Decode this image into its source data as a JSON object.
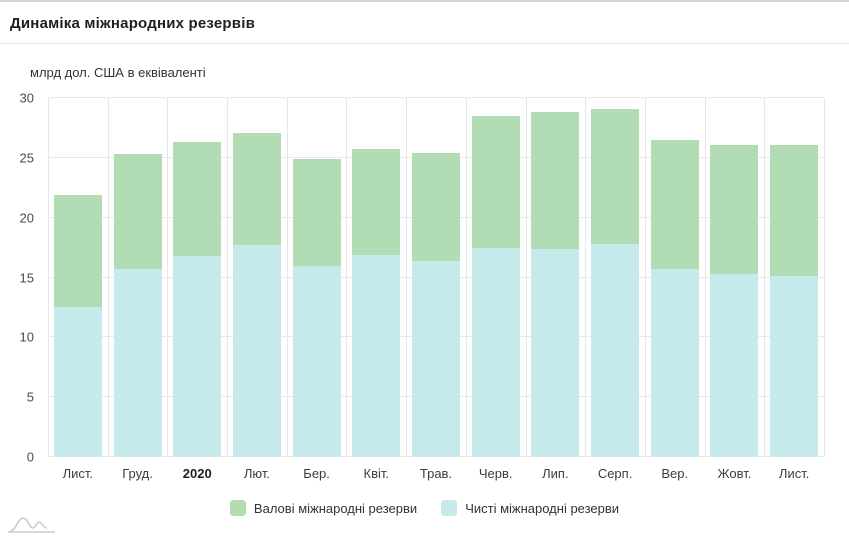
{
  "header": {
    "title": "Динаміка міжнародних резервів"
  },
  "chart_data": {
    "type": "bar",
    "title": "Динаміка міжнародних резервів",
    "ylabel": "млрд дол. США в еквіваленті",
    "xlabel": "",
    "categories": [
      "Лист.",
      "Груд.",
      "2020",
      "Лют.",
      "Бер.",
      "Квіт.",
      "Трав.",
      "Черв.",
      "Лип.",
      "Серп.",
      "Вер.",
      "Жовт.",
      "Лист."
    ],
    "bold_categories": [
      "2020"
    ],
    "bar_mode": "overlay",
    "series": [
      {
        "name": "Валові міжнародні резерви",
        "color": "#b2ddb4",
        "values": [
          21.9,
          25.3,
          26.3,
          27.1,
          24.9,
          25.7,
          25.4,
          28.5,
          28.8,
          29.1,
          26.5,
          26.1,
          26.1
        ]
      },
      {
        "name": "Чисті міжнародні резерви",
        "color": "#c6e9ec",
        "values": [
          12.5,
          15.7,
          16.8,
          17.7,
          16.0,
          16.9,
          16.4,
          17.5,
          17.4,
          17.8,
          15.7,
          15.3,
          15.1
        ]
      }
    ],
    "ylim": [
      0,
      30
    ],
    "yticks": [
      0,
      5,
      10,
      15,
      20,
      25,
      30
    ],
    "grid": true,
    "legend_position": "bottom"
  },
  "icons": {
    "bottom_left": "mini-area-chart-icon"
  },
  "colors": {
    "gross_bar": "#b2ddb4",
    "net_bar": "#c6e9ec",
    "gridline": "#e9e9e9",
    "top_border": "#d3d3d3"
  }
}
